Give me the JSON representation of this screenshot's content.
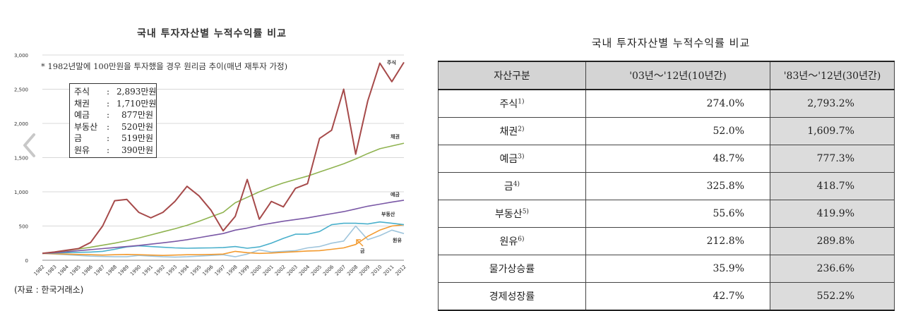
{
  "chart_data": {
    "type": "line",
    "title": "국내 투자자산별 누적수익률 비교",
    "note": "* 1982년말에 100만원을 투자했을 경우 원리금 추이(매년 재투자 가정)",
    "x": [
      "1982",
      "1983",
      "1984",
      "1985",
      "1986",
      "1987",
      "1988",
      "1989",
      "1990",
      "1991",
      "1992",
      "1993",
      "1994",
      "1995",
      "1996",
      "1997",
      "1998",
      "1999",
      "2000",
      "2001",
      "2002",
      "2003",
      "2004",
      "2005",
      "2006",
      "2007",
      "2008",
      "2009",
      "2010",
      "2011",
      "2012"
    ],
    "ylim": [
      0,
      3000
    ],
    "yticks": [
      "0",
      "500",
      "1,000",
      "1,500",
      "2,000",
      "2,500",
      "3,000"
    ],
    "grid": true,
    "series": [
      {
        "name": "주식",
        "color": "#a64a4a",
        "values": [
          100,
          120,
          145,
          170,
          260,
          500,
          870,
          890,
          700,
          620,
          700,
          860,
          1080,
          940,
          730,
          430,
          640,
          1180,
          600,
          860,
          780,
          1050,
          1120,
          1780,
          1900,
          2500,
          1550,
          2330,
          2880,
          2610,
          2893
        ]
      },
      {
        "name": "채권",
        "color": "#8fb350",
        "values": [
          100,
          120,
          140,
          165,
          190,
          220,
          250,
          285,
          325,
          370,
          415,
          460,
          510,
          570,
          635,
          700,
          840,
          920,
          1000,
          1070,
          1130,
          1180,
          1230,
          1290,
          1350,
          1410,
          1480,
          1560,
          1630,
          1670,
          1710
        ]
      },
      {
        "name": "예금",
        "color": "#7a58a6",
        "values": [
          100,
          110,
          125,
          140,
          155,
          170,
          185,
          200,
          215,
          235,
          255,
          275,
          300,
          330,
          360,
          390,
          440,
          470,
          510,
          540,
          570,
          595,
          620,
          650,
          680,
          710,
          750,
          790,
          820,
          850,
          877
        ]
      },
      {
        "name": "부동산",
        "color": "#4ab0cc",
        "values": [
          100,
          105,
          110,
          115,
          120,
          130,
          160,
          195,
          210,
          200,
          190,
          180,
          175,
          178,
          180,
          185,
          200,
          175,
          195,
          250,
          320,
          380,
          380,
          420,
          520,
          540,
          540,
          530,
          560,
          540,
          520
        ]
      },
      {
        "name": "금",
        "color": "#f39a2e",
        "values": [
          100,
          95,
          90,
          85,
          80,
          75,
          80,
          85,
          80,
          75,
          70,
          75,
          80,
          80,
          85,
          90,
          130,
          110,
          100,
          105,
          115,
          125,
          135,
          140,
          160,
          180,
          230,
          350,
          440,
          500,
          519
        ]
      },
      {
        "name": "원유",
        "color": "#9fc5dc",
        "values": [
          100,
          90,
          80,
          70,
          60,
          55,
          50,
          50,
          70,
          60,
          50,
          45,
          50,
          60,
          70,
          80,
          50,
          90,
          150,
          120,
          130,
          140,
          180,
          200,
          250,
          280,
          500,
          300,
          360,
          440,
          390
        ]
      }
    ],
    "series_labels": {
      "주식": "주식",
      "채권": "채권",
      "예금": "예금",
      "부동산": "부동산",
      "금": "금",
      "원유": "원유"
    },
    "legend_box": [
      {
        "name": "주식",
        "colon": ":",
        "value": "2,893만원"
      },
      {
        "name": "채권",
        "colon": ":",
        "value": "1,710만원"
      },
      {
        "name": "예금",
        "colon": ":",
        "value": "877만원"
      },
      {
        "name": "부동산",
        "colon": ":",
        "value": "520만원"
      },
      {
        "name": "금",
        "colon": ":",
        "value": "519만원"
      },
      {
        "name": "원유",
        "colon": ":",
        "value": "390만원"
      }
    ]
  },
  "source": "(자료 : 한국거래소)",
  "table": {
    "title": "국내 투자자산별 누적수익률 비교",
    "headers": [
      "자산구분",
      "'03년～'12년(10년간)",
      "'83년～'12년(30년간)"
    ],
    "rows": [
      {
        "name": "주식",
        "sup": "1)",
        "v1": "274.0%",
        "v2": "2,793.2%"
      },
      {
        "name": "채권",
        "sup": "2)",
        "v1": "52.0%",
        "v2": "1,609.7%"
      },
      {
        "name": "예금",
        "sup": "3)",
        "v1": "48.7%",
        "v2": "777.3%"
      },
      {
        "name": "금",
        "sup": "4)",
        "v1": "325.8%",
        "v2": "418.7%"
      },
      {
        "name": "부동산",
        "sup": "5)",
        "v1": "55.6%",
        "v2": "419.9%"
      },
      {
        "name": "원유",
        "sup": "6)",
        "v1": "212.8%",
        "v2": "289.8%"
      },
      {
        "name": "물가상승률",
        "sup": "",
        "v1": "35.9%",
        "v2": "236.6%"
      },
      {
        "name": "경제성장률",
        "sup": "",
        "v1": "42.7%",
        "v2": "552.2%"
      }
    ]
  },
  "icons": {
    "nav": "chevron-left-icon"
  }
}
